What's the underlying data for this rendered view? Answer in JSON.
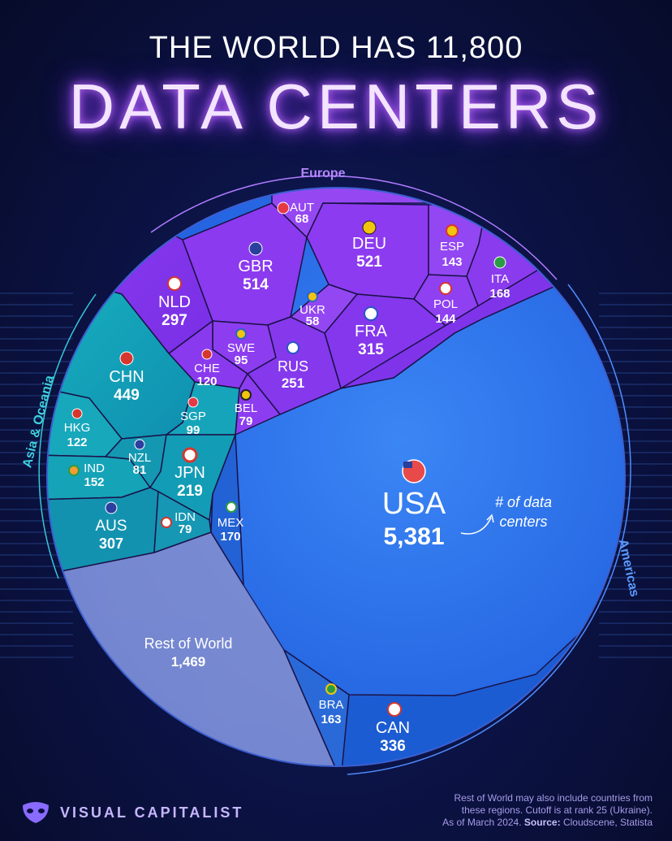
{
  "header": {
    "title_line1": "THE WORLD HAS 11,800",
    "title_line2": "DATA CENTERS"
  },
  "chart_data": {
    "type": "voronoi-treemap",
    "regions": [
      {
        "name": "Europe",
        "color": "#8a3ff0"
      },
      {
        "name": "Asia & Oceania",
        "color": "#16a6b6"
      },
      {
        "name": "Americas",
        "color": "#1f6fe0"
      }
    ],
    "cells": [
      {
        "code": "USA",
        "value": "5,381",
        "region": "Americas"
      },
      {
        "code": "CAN",
        "value": "336",
        "region": "Americas"
      },
      {
        "code": "BRA",
        "value": "163",
        "region": "Americas"
      },
      {
        "code": "MEX",
        "value": "170",
        "region": "Americas"
      },
      {
        "code": "DEU",
        "value": "521",
        "region": "Europe"
      },
      {
        "code": "GBR",
        "value": "514",
        "region": "Europe"
      },
      {
        "code": "FRA",
        "value": "315",
        "region": "Europe"
      },
      {
        "code": "NLD",
        "value": "297",
        "region": "Europe"
      },
      {
        "code": "RUS",
        "value": "251",
        "region": "Europe"
      },
      {
        "code": "ITA",
        "value": "168",
        "region": "Europe"
      },
      {
        "code": "POL",
        "value": "144",
        "region": "Europe"
      },
      {
        "code": "ESP",
        "value": "143",
        "region": "Europe"
      },
      {
        "code": "CHE",
        "value": "120",
        "region": "Europe"
      },
      {
        "code": "SWE",
        "value": "95",
        "region": "Europe"
      },
      {
        "code": "BEL",
        "value": "79",
        "region": "Europe"
      },
      {
        "code": "AUT",
        "value": "68",
        "region": "Europe"
      },
      {
        "code": "UKR",
        "value": "58",
        "region": "Europe"
      },
      {
        "code": "CHN",
        "value": "449",
        "region": "Asia & Oceania"
      },
      {
        "code": "AUS",
        "value": "307",
        "region": "Asia & Oceania"
      },
      {
        "code": "JPN",
        "value": "219",
        "region": "Asia & Oceania"
      },
      {
        "code": "IND",
        "value": "152",
        "region": "Asia & Oceania"
      },
      {
        "code": "HKG",
        "value": "122",
        "region": "Asia & Oceania"
      },
      {
        "code": "SGP",
        "value": "99",
        "region": "Asia & Oceania"
      },
      {
        "code": "NZL",
        "value": "81",
        "region": "Asia & Oceania"
      },
      {
        "code": "IDN",
        "value": "79",
        "region": "Asia & Oceania"
      },
      {
        "code": "Rest of World",
        "value": "1,469",
        "region": "Rest of World"
      }
    ],
    "annotation": "# of data centers",
    "annotation_line1": "# of data",
    "annotation_line2": "centers"
  },
  "footnote": {
    "line1": "Rest of World may also include countries from",
    "line2": "these regions. Cutoff is at rank 25 (Ukraine).",
    "line3_prefix": "As of March 2024.",
    "source_label": "Source:",
    "source_text": "Cloudscene, Statista"
  },
  "brand": {
    "name": "VISUAL CAPITALIST"
  }
}
